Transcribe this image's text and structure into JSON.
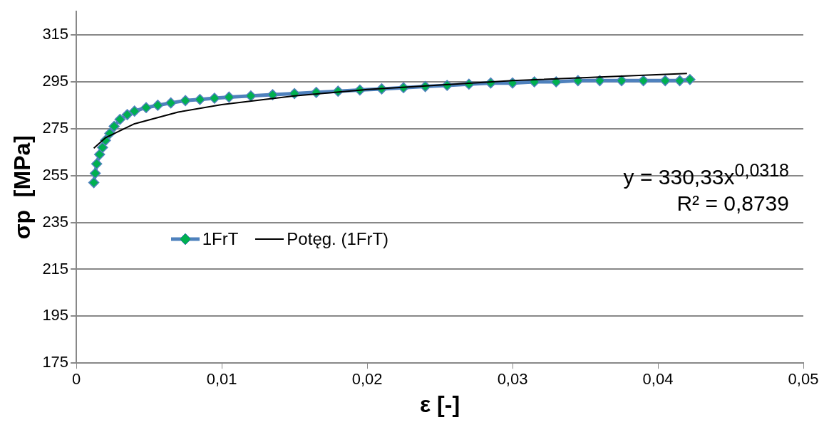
{
  "chart_data": {
    "type": "line",
    "xlabel": "ε [-]",
    "ylabel": "σp  [MPa]",
    "xlim": [
      0,
      0.05
    ],
    "xticks": [
      0,
      {
        "value": 0.01,
        "label": "0,01"
      },
      {
        "value": 0.02,
        "label": "0,02"
      },
      {
        "value": 0.03,
        "label": "0,03"
      },
      {
        "value": 0.04,
        "label": "0,04"
      },
      {
        "value": 0.05,
        "label": "0,05"
      }
    ],
    "ylim": [
      175,
      325
    ],
    "yticks": [
      175,
      195,
      215,
      235,
      255,
      275,
      295,
      315
    ],
    "grid": "y",
    "legend": "left",
    "marker": "diamond",
    "annotations": [
      "y = 330,33x$^{0,0318}$",
      "R² = 0,8739"
    ],
    "series": [
      {
        "name": "1FrT",
        "color": "#4f81bd",
        "x": [
          0.0012,
          0.0013,
          0.0014,
          0.0016,
          0.0018,
          0.002,
          0.0023,
          0.0026,
          0.003,
          0.0035,
          0.004,
          0.0048,
          0.0056,
          0.0065,
          0.0075,
          0.0085,
          0.0095,
          0.0105,
          0.012,
          0.0135,
          0.015,
          0.0165,
          0.018,
          0.0195,
          0.021,
          0.0225,
          0.024,
          0.0255,
          0.027,
          0.0285,
          0.03,
          0.0315,
          0.033,
          0.0345,
          0.036,
          0.0375,
          0.039,
          0.0405,
          0.0415,
          0.0422
        ],
        "values": [
          252,
          256,
          260,
          264,
          267,
          270,
          273,
          276,
          279,
          281,
          282.5,
          284,
          285,
          286,
          287,
          287.5,
          288,
          288.5,
          289,
          289.5,
          290,
          290.5,
          291,
          291.5,
          292,
          292.5,
          293,
          293.5,
          294,
          294.5,
          294.5,
          295,
          295,
          295.5,
          295.5,
          295.5,
          295.5,
          295.5,
          295.5,
          296
        ]
      },
      {
        "name": "Potęg. (1FrT)",
        "color": "#000000",
        "marker": "none",
        "x": [
          0.0012,
          0.002,
          0.004,
          0.007,
          0.01,
          0.015,
          0.02,
          0.03,
          0.042
        ],
        "values": [
          266.7,
          271.1,
          277.1,
          282.1,
          285.3,
          289,
          291.7,
          295.5,
          298.6
        ]
      }
    ]
  }
}
